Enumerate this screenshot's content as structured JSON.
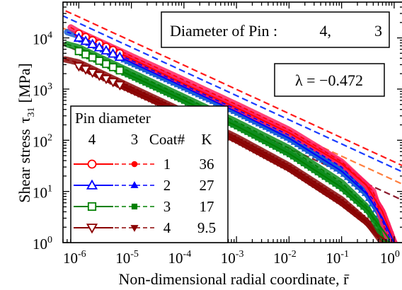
{
  "chart_data": {
    "type": "line",
    "xlabel": "Non-dimensional radial coordinate, r̄",
    "ylabel_main": "Shear stress",
    "ylabel_symbol": "τ",
    "ylabel_sub": "31",
    "ylabel_unit": "[MPa]",
    "x_scale": "log",
    "y_scale": "log",
    "xlim": [
      5e-07,
      1.5
    ],
    "ylim": [
      1,
      50000
    ],
    "x_ticks": [
      {
        "base": "10",
        "exp": "-6",
        "value": 1e-06
      },
      {
        "base": "10",
        "exp": "-5",
        "value": 1e-05
      },
      {
        "base": "10",
        "exp": "-4",
        "value": 0.0001
      },
      {
        "base": "10",
        "exp": "-3",
        "value": 0.001
      },
      {
        "base": "10",
        "exp": "-2",
        "value": 0.01
      },
      {
        "base": "10",
        "exp": "-1",
        "value": 0.1
      },
      {
        "base": "10",
        "exp": "0",
        "value": 1
      }
    ],
    "y_ticks": [
      {
        "base": "10",
        "exp": "0",
        "value": 1
      },
      {
        "base": "10",
        "exp": "1",
        "value": 10
      },
      {
        "base": "10",
        "exp": "2",
        "value": 100
      },
      {
        "base": "10",
        "exp": "3",
        "value": 1000
      },
      {
        "base": "10",
        "exp": "4",
        "value": 10000
      }
    ],
    "annotations": {
      "diameter_box": {
        "label": "Diameter of Pin :",
        "value_1": "4,",
        "value_2": "3"
      },
      "lambda_box": {
        "text": "λ = −0.472"
      }
    },
    "legend": {
      "title": "Pin diameter",
      "col_1": "4",
      "col_2": "3",
      "col_3": "Coat#",
      "col_4": "K",
      "rows": [
        {
          "coat": "1",
          "k": "36"
        },
        {
          "coat": "2",
          "k": "27"
        },
        {
          "coat": "3",
          "k": "17"
        },
        {
          "coat": "4",
          "k": "9.5"
        }
      ]
    },
    "asymptote_slope": -0.472,
    "series": [
      {
        "coat": "1",
        "k": 36,
        "color": "#ff0000",
        "dense_color": "#ff2060",
        "asym_color": "#ff1a1a",
        "marker": "circle",
        "pin4_x": [
          1e-06,
          0.0001,
          0.001,
          0.01,
          0.1,
          0.3,
          0.6,
          1.0
        ],
        "pin4_y": [
          12000,
          1270,
          430,
          140,
          35,
          13,
          4,
          1
        ],
        "pin3_x": [
          7e-07,
          1e-06,
          0.0001,
          0.001,
          0.01,
          0.1,
          0.4,
          0.8
        ],
        "pin3_y": [
          16000,
          13000,
          1500,
          500,
          160,
          38,
          10,
          1
        ]
      },
      {
        "coat": "2",
        "k": 27,
        "color": "#0000ff",
        "dense_color": "#1a5fd6",
        "asym_color": "#1a3cff",
        "marker": "triangle-up",
        "pin4_x": [
          1e-06,
          0.0001,
          0.001,
          0.01,
          0.1,
          0.3,
          0.6,
          1.0
        ],
        "pin4_y": [
          10000,
          1100,
          360,
          110,
          25,
          9,
          3,
          1
        ],
        "pin3_x": [
          6e-07,
          1e-06,
          0.0001,
          0.001,
          0.01,
          0.1,
          0.4,
          0.9
        ],
        "pin3_y": [
          13000,
          11000,
          1200,
          400,
          125,
          30,
          7,
          1
        ]
      },
      {
        "coat": "3",
        "k": 17,
        "color": "#008000",
        "dense_color": "#0e8c1e",
        "asym_color": "#ff7f3f",
        "marker": "square",
        "pin4_x": [
          1e-06,
          0.0001,
          0.001,
          0.01,
          0.1,
          0.3,
          0.6,
          0.9
        ],
        "pin4_y": [
          5500,
          600,
          190,
          55,
          12,
          4.5,
          1.8,
          1
        ],
        "pin3_x": [
          6e-07,
          1e-06,
          0.0001,
          0.001,
          0.01,
          0.1,
          0.3,
          0.7
        ],
        "pin3_y": [
          7500,
          6500,
          700,
          230,
          70,
          15,
          5,
          1
        ]
      },
      {
        "coat": "4",
        "k": 9.5,
        "color": "#8b0000",
        "dense_color": "#8b0a0a",
        "asym_color": "#8b1a2c",
        "marker": "triangle-down",
        "pin4_x": [
          1e-06,
          0.0001,
          0.001,
          0.01,
          0.1,
          0.3,
          0.5,
          0.8
        ],
        "pin4_y": [
          2800,
          320,
          100,
          28,
          6,
          2.5,
          1.4,
          1
        ],
        "pin3_x": [
          5.5e-07,
          1e-06,
          0.0001,
          0.001,
          0.01,
          0.1,
          0.3,
          0.6
        ],
        "pin3_y": [
          3800,
          3300,
          360,
          115,
          32,
          7,
          2.6,
          1
        ]
      }
    ]
  }
}
